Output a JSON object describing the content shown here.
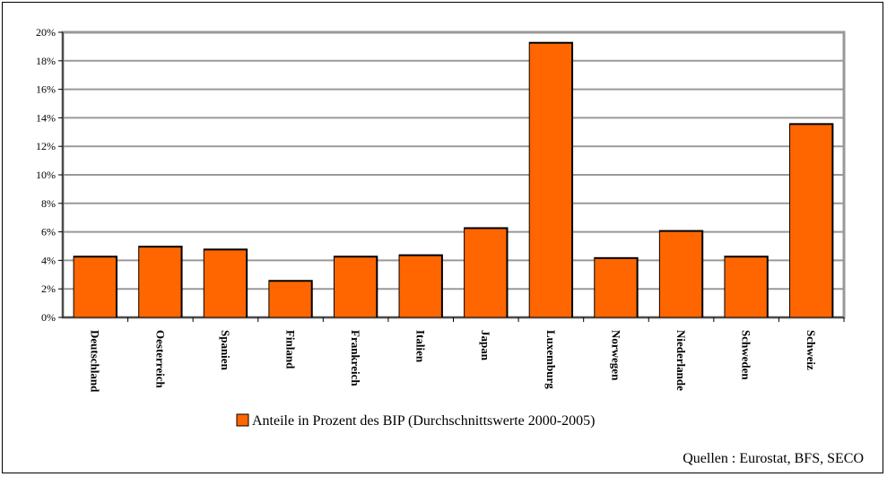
{
  "chart_data": {
    "type": "bar",
    "categories": [
      "Deutschland",
      "Oesterreich",
      "Spanien",
      "Finland",
      "Frankreich",
      "Italien",
      "Japan",
      "Luxemburg",
      "Norwegen",
      "Niederlande",
      "Schweden",
      "Schweiz"
    ],
    "series": [
      {
        "name": "Anteile in Prozent des BIP (Durchschnittswerte 2000-2005)",
        "values": [
          4.2,
          4.9,
          4.7,
          2.5,
          4.2,
          4.3,
          6.2,
          19.2,
          4.1,
          6.0,
          4.2,
          13.5
        ]
      }
    ],
    "y_ticks": [
      "0%",
      "2%",
      "4%",
      "6%",
      "8%",
      "10%",
      "12%",
      "14%",
      "16%",
      "18%",
      "20%"
    ],
    "ylim": [
      0,
      20
    ],
    "grid": true,
    "legend_position": "bottom",
    "bar_color": "#ff6600",
    "plot_background": "#ffffff",
    "source": "Quellen : Eurostat, BFS, SECO"
  }
}
